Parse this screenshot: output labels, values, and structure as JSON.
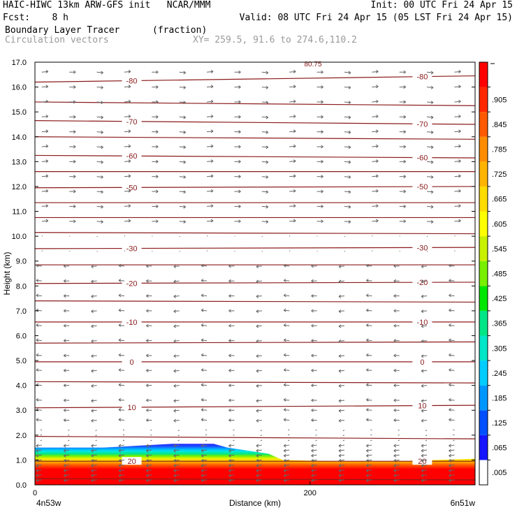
{
  "header": {
    "line1_left": "HAIC-HIWC 13km ARW-GFS init   NCAR/MMM",
    "line1_right": "Init: 00 UTC Fri 24 Apr 15",
    "line2_left": "Fcst:    8 h",
    "line2_right": "Valid: 08 UTC Fri 24 Apr 15 (05 LST Fri 24 Apr 15)",
    "line3_left": "Boundary Layer Tracer",
    "line3_mid": "(fraction)",
    "line4_left": "Circulation vectors",
    "line4_mid": "XY= 259.5, 91.6 to 274.6,110.2"
  },
  "chart_data": {
    "type": "heatmap",
    "title": "Boundary Layer Tracer",
    "units": "(fraction)",
    "xlabel": "Distance (km)",
    "ylabel": "Height (km)",
    "xlim": [
      0,
      320
    ],
    "ylim": [
      0,
      17
    ],
    "x_ticks": [
      0,
      200
    ],
    "y_ticks": [
      "0.0",
      "1.0",
      "2.0",
      "3.0",
      "4.0",
      "5.0",
      "6.0",
      "7.0",
      "8.0",
      "9.0",
      "10.0",
      "11.0",
      "12.0",
      "13.0",
      "14.0",
      "15.0",
      "16.0",
      "17.0"
    ],
    "x_endpoint_left": "4n53w",
    "x_endpoint_right": "6n51w",
    "colorbar_labels": [
      ".005",
      ".065",
      ".125",
      ".185",
      ".245",
      ".305",
      ".365",
      ".425",
      ".485",
      ".545",
      ".605",
      ".665",
      ".725",
      ".785",
      ".845",
      ".905"
    ],
    "colorbar_colors": [
      "#ffffff",
      "#1515ff",
      "#0050ff",
      "#0096ff",
      "#00ccff",
      "#00e6c8",
      "#00e687",
      "#00e600",
      "#78f000",
      "#c8f000",
      "#ffff00",
      "#ffdc00",
      "#ffb400",
      "#ff8c00",
      "#ff5a00",
      "#ff2800",
      "#ff0000"
    ],
    "tracer_top_km": {
      "x": [
        0,
        50,
        100,
        130,
        140,
        170,
        180,
        220,
        260,
        320
      ],
      "y": [
        1.5,
        1.5,
        1.65,
        1.65,
        1.5,
        1.25,
        1.0,
        0.95,
        0.95,
        1.05
      ]
    },
    "contour_color": "#8b1a1a",
    "contours": [
      {
        "label": "",
        "y": [
          0.25,
          0.2
        ]
      },
      {
        "label": "20",
        "y": [
          0.95,
          0.95
        ]
      },
      {
        "label": "",
        "y": [
          1.95,
          1.85
        ]
      },
      {
        "label": "10",
        "y": [
          3.1,
          3.2
        ]
      },
      {
        "label": "",
        "y": [
          4.15,
          4.1
        ]
      },
      {
        "label": "0",
        "y": [
          4.95,
          4.95
        ]
      },
      {
        "label": "",
        "y": [
          5.7,
          5.75
        ]
      },
      {
        "label": "-10",
        "y": [
          6.55,
          6.55
        ]
      },
      {
        "label": "",
        "y": [
          7.4,
          7.35
        ]
      },
      {
        "label": "-20",
        "y": [
          8.1,
          8.15
        ]
      },
      {
        "label": "",
        "y": [
          8.85,
          8.85
        ]
      },
      {
        "label": "-30",
        "y": [
          9.5,
          9.55
        ]
      },
      {
        "label": "",
        "y": [
          10.15,
          10.1
        ]
      },
      {
        "label": "",
        "y": [
          10.75,
          10.75
        ]
      },
      {
        "label": "",
        "y": [
          11.35,
          11.35
        ]
      },
      {
        "label": "-50",
        "y": [
          11.95,
          12.0
        ]
      },
      {
        "label": "",
        "y": [
          12.6,
          12.6
        ]
      },
      {
        "label": "-60",
        "y": [
          13.25,
          13.15
        ]
      },
      {
        "label": "",
        "y": [
          14.0,
          13.9
        ]
      },
      {
        "label": "-70",
        "y": [
          14.65,
          14.5
        ]
      },
      {
        "label": "",
        "y": [
          15.4,
          15.25
        ]
      },
      {
        "label": "-80",
        "y": [
          16.2,
          16.45
        ]
      }
    ],
    "contour_label_partial": "80.75",
    "vectors": {
      "grid_x_km": [
        5,
        25,
        45,
        65,
        85,
        105,
        125,
        145,
        165,
        185,
        205,
        225,
        245,
        265,
        285,
        305
      ],
      "upper_dx": 9,
      "lower_dx": -8,
      "transition_km": 9.5
    }
  }
}
